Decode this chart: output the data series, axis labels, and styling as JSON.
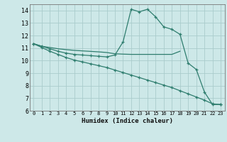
{
  "xlabel": "Humidex (Indice chaleur)",
  "background_color": "#cde8e8",
  "grid_color": "#aacccc",
  "line_color": "#2e7d6e",
  "xlim": [
    -0.5,
    23.5
  ],
  "ylim": [
    6,
    14.5
  ],
  "yticks": [
    6,
    7,
    8,
    9,
    10,
    11,
    12,
    13,
    14
  ],
  "xticks": [
    0,
    1,
    2,
    3,
    4,
    5,
    6,
    7,
    8,
    9,
    10,
    11,
    12,
    13,
    14,
    15,
    16,
    17,
    18,
    19,
    20,
    21,
    22,
    23
  ],
  "series1_x": [
    0,
    1,
    2,
    3,
    4,
    5,
    6,
    7,
    8,
    9,
    10,
    11,
    12,
    13,
    14,
    15,
    16,
    17,
    18,
    19,
    20,
    21,
    22,
    23
  ],
  "series1_y": [
    11.35,
    11.15,
    10.95,
    10.75,
    10.6,
    10.5,
    10.45,
    10.4,
    10.35,
    10.3,
    10.45,
    11.5,
    14.1,
    13.9,
    14.1,
    13.5,
    12.7,
    12.5,
    12.1,
    9.8,
    9.3,
    7.5,
    6.5,
    6.5
  ],
  "series2_x": [
    0,
    1,
    2,
    3,
    4,
    5,
    6,
    7,
    8,
    9,
    10,
    11,
    12,
    13,
    14,
    15,
    16,
    17,
    18
  ],
  "series2_y": [
    11.35,
    11.15,
    11.05,
    10.95,
    10.88,
    10.82,
    10.78,
    10.74,
    10.7,
    10.65,
    10.55,
    10.52,
    10.5,
    10.5,
    10.5,
    10.5,
    10.5,
    10.5,
    10.75
  ],
  "series3_x": [
    0,
    1,
    2,
    3,
    4,
    5,
    6,
    7,
    8,
    9,
    10,
    11,
    12,
    13,
    14,
    15,
    16,
    17,
    18,
    19,
    20,
    21,
    22,
    23
  ],
  "series3_y": [
    11.35,
    11.05,
    10.75,
    10.5,
    10.25,
    10.05,
    9.9,
    9.75,
    9.6,
    9.45,
    9.25,
    9.05,
    8.85,
    8.65,
    8.45,
    8.25,
    8.05,
    7.85,
    7.6,
    7.35,
    7.1,
    6.85,
    6.55,
    6.5
  ]
}
